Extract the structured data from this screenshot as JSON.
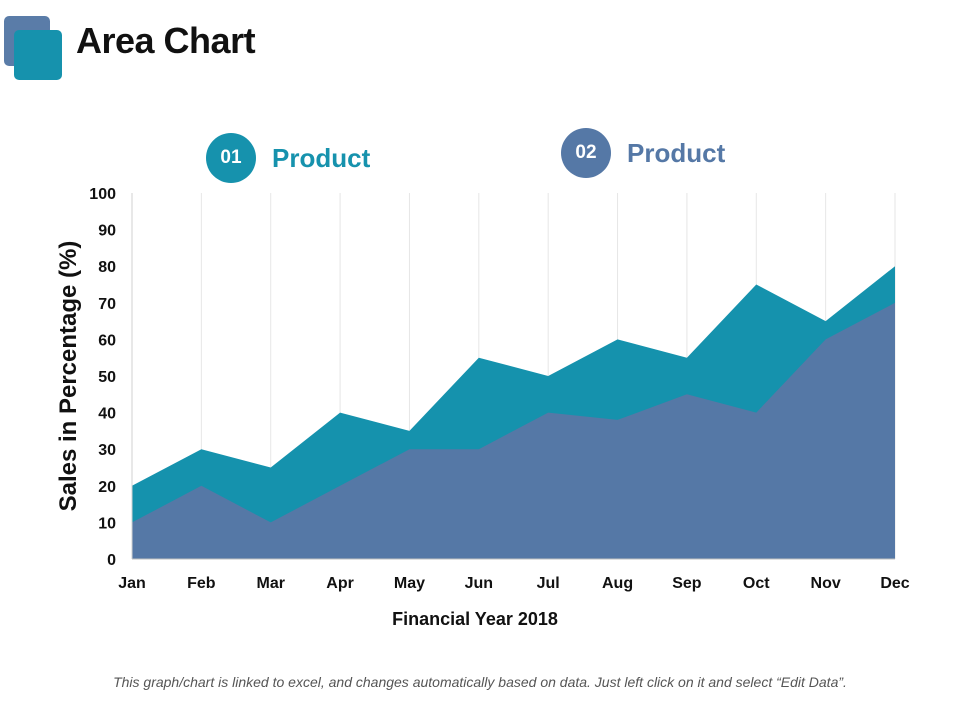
{
  "slide": {
    "title": "Area Chart",
    "footnote": "This graph/chart is linked to excel, and changes automatically based on data. Just left click on it and select “Edit Data”."
  },
  "legend": [
    {
      "badge": "01",
      "label": "Product"
    },
    {
      "badge": "02",
      "label": "Product"
    }
  ],
  "colors": {
    "series1": "#1592ad",
    "series2": "#5578a6",
    "logo_back": "#5a7ca8",
    "logo_front": "#1692ad",
    "badge1": "#1692ad",
    "badge2": "#5578a6",
    "label1": "#1692ad",
    "label2": "#5578a6"
  },
  "chart_data": {
    "type": "area",
    "categories": [
      "Jan",
      "Feb",
      "Mar",
      "Apr",
      "May",
      "Jun",
      "Jul",
      "Aug",
      "Sep",
      "Oct",
      "Nov",
      "Dec"
    ],
    "series": [
      {
        "name": "Product",
        "values": [
          20,
          30,
          25,
          40,
          35,
          55,
          50,
          60,
          55,
          75,
          65,
          80
        ]
      },
      {
        "name": "Product",
        "values": [
          10,
          20,
          10,
          20,
          30,
          30,
          40,
          38,
          45,
          40,
          60,
          70
        ]
      }
    ],
    "xlabel": "Financial Year 2018",
    "ylabel": "Sales in Percentage (%)",
    "ylim": [
      0,
      100
    ],
    "yticks": [
      0,
      10,
      20,
      30,
      40,
      50,
      60,
      70,
      80,
      90,
      100
    ],
    "grid": "vertical",
    "legend_position": "top"
  }
}
